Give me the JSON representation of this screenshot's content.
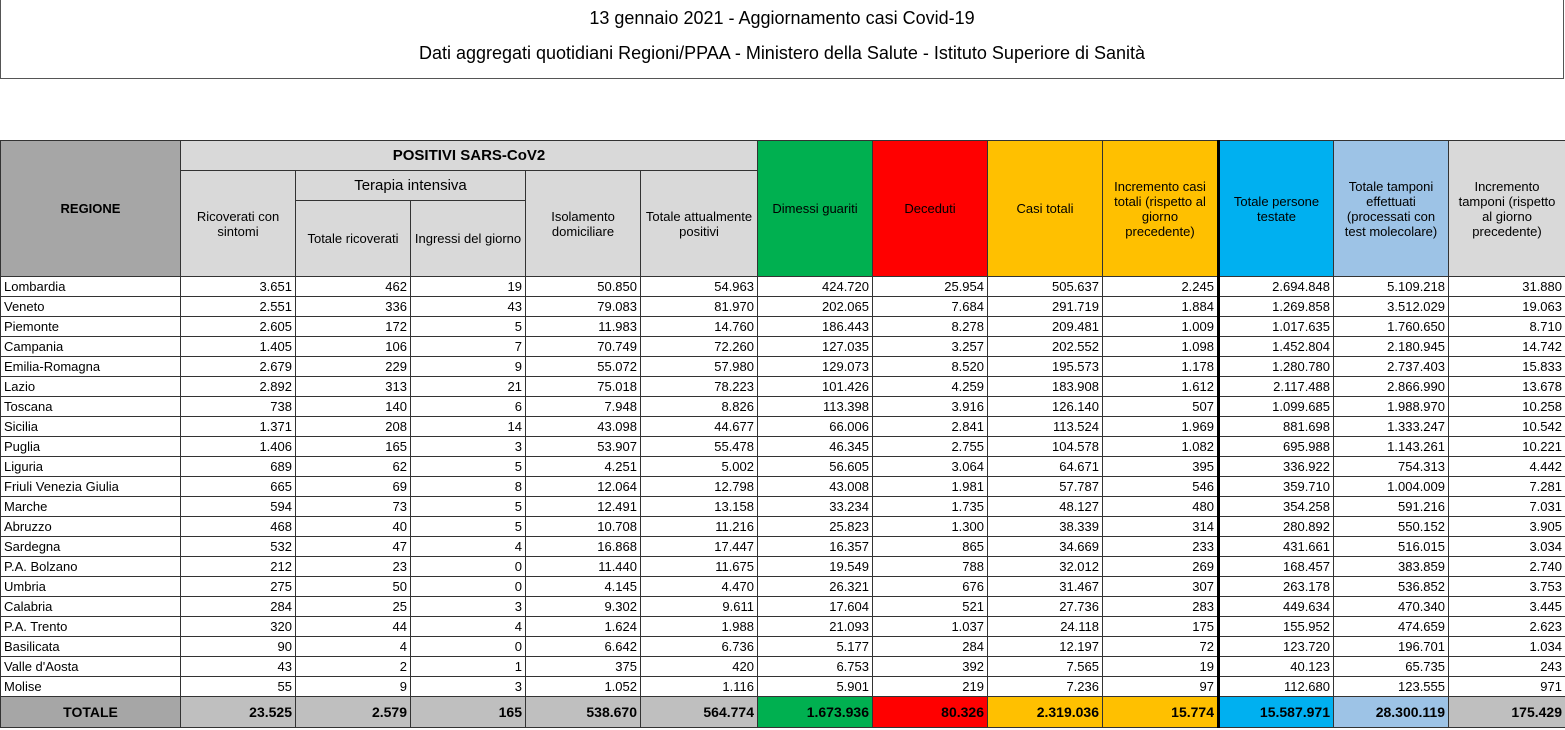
{
  "title": "13 gennaio 2021 - Aggiornamento casi Covid-19",
  "subtitle": "Dati aggregati quotidiani Regioni/PPAA - Ministero della Salute - Istituto Superiore di Sanità",
  "headers": {
    "regione": "REGIONE",
    "positivi": "POSITIVI SARS-CoV2",
    "terapia": "Terapia intensiva",
    "ricoverati": "Ricoverati con sintomi",
    "totale_ricoverati": "Totale ricoverati",
    "ingressi": "Ingressi del giorno",
    "isolamento": "Isolamento domiciliare",
    "totale_positivi": "Totale attualmente positivi",
    "dimessi": "Dimessi guariti",
    "deceduti": "Deceduti",
    "casi": "Casi totali",
    "incremento_casi": "Incremento casi totali (rispetto al giorno precedente)",
    "persone": "Totale persone testate",
    "tamponi": "Totale tamponi effettuati (processati con test molecolare)",
    "incremento_tamponi": "Incremento tamponi (rispetto al giorno precedente)"
  },
  "colors": {
    "dimessi": "#00b050",
    "deceduti": "#ff0000",
    "casi": "#ffc000",
    "persone": "#00b0f0",
    "tamponi": "#9dc3e6"
  },
  "rows": [
    [
      "Lombardia",
      "3.651",
      "462",
      "19",
      "50.850",
      "54.963",
      "424.720",
      "25.954",
      "505.637",
      "2.245",
      "2.694.848",
      "5.109.218",
      "31.880"
    ],
    [
      "Veneto",
      "2.551",
      "336",
      "43",
      "79.083",
      "81.970",
      "202.065",
      "7.684",
      "291.719",
      "1.884",
      "1.269.858",
      "3.512.029",
      "19.063"
    ],
    [
      "Piemonte",
      "2.605",
      "172",
      "5",
      "11.983",
      "14.760",
      "186.443",
      "8.278",
      "209.481",
      "1.009",
      "1.017.635",
      "1.760.650",
      "8.710"
    ],
    [
      "Campania",
      "1.405",
      "106",
      "7",
      "70.749",
      "72.260",
      "127.035",
      "3.257",
      "202.552",
      "1.098",
      "1.452.804",
      "2.180.945",
      "14.742"
    ],
    [
      "Emilia-Romagna",
      "2.679",
      "229",
      "9",
      "55.072",
      "57.980",
      "129.073",
      "8.520",
      "195.573",
      "1.178",
      "1.280.780",
      "2.737.403",
      "15.833"
    ],
    [
      "Lazio",
      "2.892",
      "313",
      "21",
      "75.018",
      "78.223",
      "101.426",
      "4.259",
      "183.908",
      "1.612",
      "2.117.488",
      "2.866.990",
      "13.678"
    ],
    [
      "Toscana",
      "738",
      "140",
      "6",
      "7.948",
      "8.826",
      "113.398",
      "3.916",
      "126.140",
      "507",
      "1.099.685",
      "1.988.970",
      "10.258"
    ],
    [
      "Sicilia",
      "1.371",
      "208",
      "14",
      "43.098",
      "44.677",
      "66.006",
      "2.841",
      "113.524",
      "1.969",
      "881.698",
      "1.333.247",
      "10.542"
    ],
    [
      "Puglia",
      "1.406",
      "165",
      "3",
      "53.907",
      "55.478",
      "46.345",
      "2.755",
      "104.578",
      "1.082",
      "695.988",
      "1.143.261",
      "10.221"
    ],
    [
      "Liguria",
      "689",
      "62",
      "5",
      "4.251",
      "5.002",
      "56.605",
      "3.064",
      "64.671",
      "395",
      "336.922",
      "754.313",
      "4.442"
    ],
    [
      "Friuli Venezia Giulia",
      "665",
      "69",
      "8",
      "12.064",
      "12.798",
      "43.008",
      "1.981",
      "57.787",
      "546",
      "359.710",
      "1.004.009",
      "7.281"
    ],
    [
      "Marche",
      "594",
      "73",
      "5",
      "12.491",
      "13.158",
      "33.234",
      "1.735",
      "48.127",
      "480",
      "354.258",
      "591.216",
      "7.031"
    ],
    [
      "Abruzzo",
      "468",
      "40",
      "5",
      "10.708",
      "11.216",
      "25.823",
      "1.300",
      "38.339",
      "314",
      "280.892",
      "550.152",
      "3.905"
    ],
    [
      "Sardegna",
      "532",
      "47",
      "4",
      "16.868",
      "17.447",
      "16.357",
      "865",
      "34.669",
      "233",
      "431.661",
      "516.015",
      "3.034"
    ],
    [
      "P.A. Bolzano",
      "212",
      "23",
      "0",
      "11.440",
      "11.675",
      "19.549",
      "788",
      "32.012",
      "269",
      "168.457",
      "383.859",
      "2.740"
    ],
    [
      "Umbria",
      "275",
      "50",
      "0",
      "4.145",
      "4.470",
      "26.321",
      "676",
      "31.467",
      "307",
      "263.178",
      "536.852",
      "3.753"
    ],
    [
      "Calabria",
      "284",
      "25",
      "3",
      "9.302",
      "9.611",
      "17.604",
      "521",
      "27.736",
      "283",
      "449.634",
      "470.340",
      "3.445"
    ],
    [
      "P.A. Trento",
      "320",
      "44",
      "4",
      "1.624",
      "1.988",
      "21.093",
      "1.037",
      "24.118",
      "175",
      "155.952",
      "474.659",
      "2.623"
    ],
    [
      "Basilicata",
      "90",
      "4",
      "0",
      "6.642",
      "6.736",
      "5.177",
      "284",
      "12.197",
      "72",
      "123.720",
      "196.701",
      "1.034"
    ],
    [
      "Valle d'Aosta",
      "43",
      "2",
      "1",
      "375",
      "420",
      "6.753",
      "392",
      "7.565",
      "19",
      "40.123",
      "65.735",
      "243"
    ],
    [
      "Molise",
      "55",
      "9",
      "3",
      "1.052",
      "1.116",
      "5.901",
      "219",
      "7.236",
      "97",
      "112.680",
      "123.555",
      "971"
    ]
  ],
  "total": [
    "TOTALE",
    "23.525",
    "2.579",
    "165",
    "538.670",
    "564.774",
    "1.673.936",
    "80.326",
    "2.319.036",
    "15.774",
    "15.587.971",
    "28.300.119",
    "175.429"
  ]
}
